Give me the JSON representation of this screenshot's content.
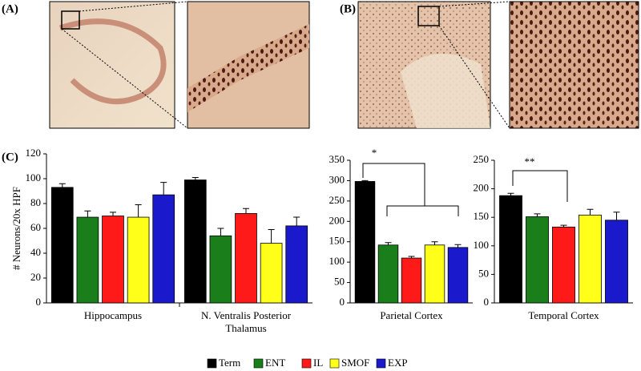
{
  "panel_labels": [
    "(A)",
    "(B)",
    "(C)"
  ],
  "chart_data": [
    {
      "type": "bar",
      "ylabel": "# Neurons/20x HPF",
      "categories": [
        "Hippocampus",
        "N. Ventralis Posterior Thalamus"
      ],
      "ylim": [
        0,
        120
      ],
      "yticks": [
        0,
        20,
        40,
        60,
        80,
        100,
        120
      ],
      "series": [
        {
          "name": "Term",
          "color": "#000000",
          "values": [
            93,
            99
          ],
          "errors": [
            3,
            2
          ]
        },
        {
          "name": "ENT",
          "color": "#1a7f1a",
          "values": [
            69,
            54
          ],
          "errors": [
            5,
            6
          ]
        },
        {
          "name": "IL",
          "color": "#ff1a1a",
          "values": [
            70,
            72
          ],
          "errors": [
            3,
            4
          ]
        },
        {
          "name": "SMOF",
          "color": "#ffff1a",
          "values": [
            69,
            48
          ],
          "errors": [
            10,
            11
          ]
        },
        {
          "name": "EXP",
          "color": "#1a1acc",
          "values": [
            87,
            62
          ],
          "errors": [
            10,
            7
          ]
        }
      ]
    },
    {
      "type": "bar",
      "categories": [
        "Parietal Cortex"
      ],
      "annotation": "*",
      "ylim": [
        0,
        350
      ],
      "yticks": [
        0,
        50,
        100,
        150,
        200,
        250,
        300,
        350
      ],
      "series": [
        {
          "values": [
            298
          ],
          "errors": [
            2
          ]
        },
        {
          "values": [
            142
          ],
          "errors": [
            6
          ]
        },
        {
          "values": [
            110
          ],
          "errors": [
            4
          ]
        },
        {
          "values": [
            142
          ],
          "errors": [
            8
          ]
        },
        {
          "values": [
            136
          ],
          "errors": [
            7
          ]
        }
      ]
    },
    {
      "type": "bar",
      "categories": [
        "Temporal Cortex"
      ],
      "annotation": "**",
      "ylim": [
        0,
        250
      ],
      "yticks": [
        0,
        50,
        100,
        150,
        200,
        250
      ],
      "series": [
        {
          "values": [
            188
          ],
          "errors": [
            4
          ]
        },
        {
          "values": [
            151
          ],
          "errors": [
            5
          ]
        },
        {
          "values": [
            133
          ],
          "errors": [
            3
          ]
        },
        {
          "values": [
            154
          ],
          "errors": [
            10
          ]
        },
        {
          "values": [
            145
          ],
          "errors": [
            14
          ]
        }
      ]
    }
  ]
}
